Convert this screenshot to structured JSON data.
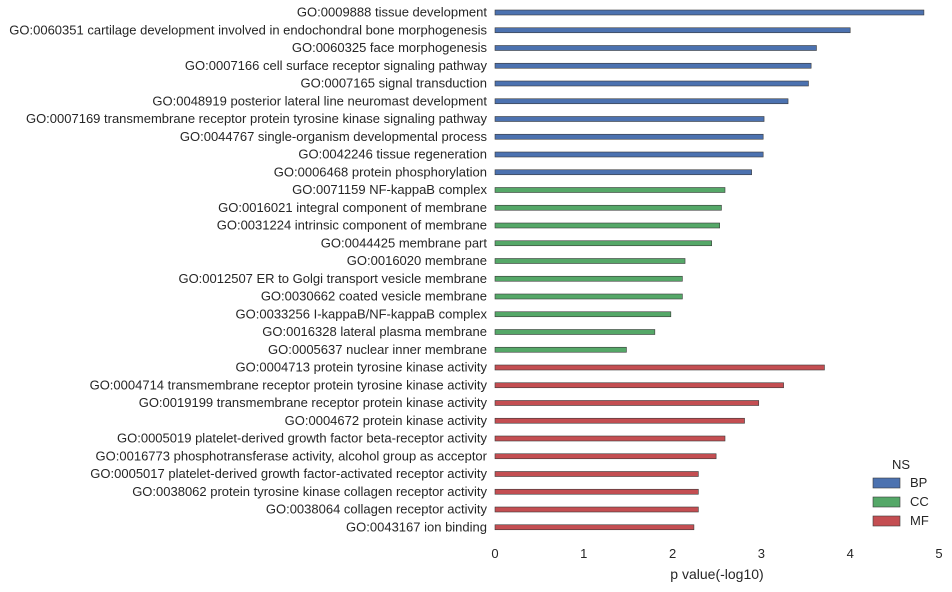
{
  "chart_data": {
    "type": "bar",
    "orientation": "horizontal",
    "xlabel": "p value(-log10)",
    "ylabel": "",
    "xlim": [
      0,
      5
    ],
    "xticks": [
      "0",
      "1",
      "2",
      "3",
      "4",
      "5"
    ],
    "grid": false,
    "legend": {
      "title": "NS",
      "placement": "bottom-right",
      "entries": [
        {
          "key": "BP",
          "label": "BP",
          "color": "#4c72b0"
        },
        {
          "key": "CC",
          "label": "CC",
          "color": "#55a868"
        },
        {
          "key": "MF",
          "label": "MF",
          "color": "#c44e52"
        }
      ]
    },
    "bars": [
      {
        "label": "GO:0009888 tissue development",
        "value": 4.83,
        "group": "BP"
      },
      {
        "label": "GO:0060351 cartilage development involved in endochondral bone morphogenesis",
        "value": 4.0,
        "group": "BP"
      },
      {
        "label": "GO:0060325 face morphogenesis",
        "value": 3.62,
        "group": "BP"
      },
      {
        "label": "GO:0007166 cell surface receptor signaling pathway",
        "value": 3.56,
        "group": "BP"
      },
      {
        "label": "GO:0007165 signal transduction",
        "value": 3.53,
        "group": "BP"
      },
      {
        "label": "GO:0048919 posterior lateral line neuromast development",
        "value": 3.3,
        "group": "BP"
      },
      {
        "label": "GO:0007169 transmembrane receptor protein tyrosine kinase signaling pathway",
        "value": 3.03,
        "group": "BP"
      },
      {
        "label": "GO:0044767 single-organism developmental process",
        "value": 3.02,
        "group": "BP"
      },
      {
        "label": "GO:0042246 tissue regeneration",
        "value": 3.02,
        "group": "BP"
      },
      {
        "label": "GO:0006468 protein phosphorylation",
        "value": 2.89,
        "group": "BP"
      },
      {
        "label": "GO:0071159 NF-kappaB complex",
        "value": 2.59,
        "group": "CC"
      },
      {
        "label": "GO:0016021 integral component of membrane",
        "value": 2.55,
        "group": "CC"
      },
      {
        "label": "GO:0031224 intrinsic component of membrane",
        "value": 2.53,
        "group": "CC"
      },
      {
        "label": "GO:0044425 membrane part",
        "value": 2.44,
        "group": "CC"
      },
      {
        "label": "GO:0016020 membrane",
        "value": 2.14,
        "group": "CC"
      },
      {
        "label": "GO:0012507 ER to Golgi transport vesicle membrane",
        "value": 2.11,
        "group": "CC"
      },
      {
        "label": "GO:0030662 coated vesicle membrane",
        "value": 2.11,
        "group": "CC"
      },
      {
        "label": "GO:0033256 I-kappaB/NF-kappaB complex",
        "value": 1.98,
        "group": "CC"
      },
      {
        "label": "GO:0016328 lateral plasma membrane",
        "value": 1.8,
        "group": "CC"
      },
      {
        "label": "GO:0005637 nuclear inner membrane",
        "value": 1.48,
        "group": "CC"
      },
      {
        "label": "GO:0004713 protein tyrosine kinase activity",
        "value": 3.71,
        "group": "MF"
      },
      {
        "label": "GO:0004714 transmembrane receptor protein tyrosine kinase activity",
        "value": 3.25,
        "group": "MF"
      },
      {
        "label": "GO:0019199 transmembrane receptor protein kinase activity",
        "value": 2.97,
        "group": "MF"
      },
      {
        "label": "GO:0004672 protein kinase activity",
        "value": 2.81,
        "group": "MF"
      },
      {
        "label": "GO:0005019 platelet-derived growth factor beta-receptor activity",
        "value": 2.59,
        "group": "MF"
      },
      {
        "label": "GO:0016773 phosphotransferase activity, alcohol group as acceptor",
        "value": 2.49,
        "group": "MF"
      },
      {
        "label": "GO:0005017 platelet-derived growth factor-activated receptor activity",
        "value": 2.29,
        "group": "MF"
      },
      {
        "label": "GO:0038062 protein tyrosine kinase collagen receptor activity",
        "value": 2.29,
        "group": "MF"
      },
      {
        "label": "GO:0038064 collagen receptor activity",
        "value": 2.29,
        "group": "MF"
      },
      {
        "label": "GO:0043167 ion binding",
        "value": 2.24,
        "group": "MF"
      }
    ]
  }
}
